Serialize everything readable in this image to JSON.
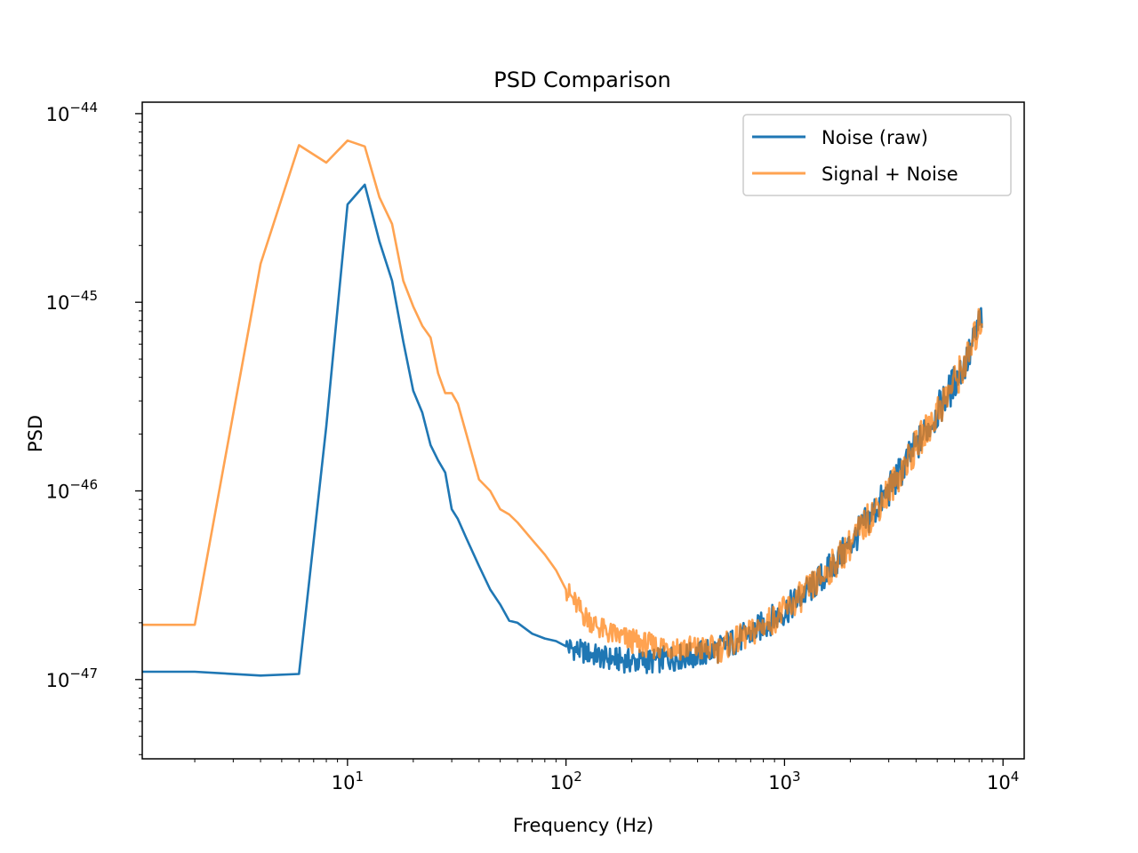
{
  "chart_data": {
    "type": "line",
    "title": "PSD Comparison",
    "xlabel": "Frequency (Hz)",
    "ylabel": "PSD",
    "xscale": "log",
    "yscale": "log",
    "xlim": [
      1.15,
      12500
    ],
    "ylim": [
      3.8e-48,
      1.15e-44
    ],
    "grid": false,
    "legend": {
      "placement": "top-right"
    },
    "x_ticks": [
      {
        "value": 10,
        "base": "10",
        "exp": "1"
      },
      {
        "value": 100,
        "base": "10",
        "exp": "2"
      },
      {
        "value": 1000,
        "base": "10",
        "exp": "3"
      },
      {
        "value": 10000,
        "base": "10",
        "exp": "4"
      }
    ],
    "y_ticks": [
      {
        "value": 1e-47,
        "base": "10",
        "exp": "−47"
      },
      {
        "value": 1e-46,
        "base": "10",
        "exp": "−46"
      },
      {
        "value": 1e-45,
        "base": "10",
        "exp": "−45"
      },
      {
        "value": 1e-44,
        "base": "10",
        "exp": "−44"
      }
    ],
    "series": [
      {
        "name": "Noise (raw)",
        "color": "#1f77b4",
        "x": [
          1,
          2,
          4,
          6,
          8,
          10,
          12,
          14,
          16,
          18,
          20,
          22,
          24,
          26,
          28,
          30,
          32,
          35,
          40,
          45,
          50,
          55,
          60,
          70,
          80,
          90,
          100,
          120,
          150,
          200,
          250,
          300,
          400,
          500,
          700,
          1000,
          1500,
          2000,
          3000,
          5000,
          7000,
          8000
        ],
        "y": [
          1.1e-47,
          1.1e-47,
          1.05e-47,
          1.07e-47,
          2.2e-46,
          3.3e-45,
          4.2e-45,
          2.1e-45,
          1.3e-45,
          6.2e-46,
          3.4e-46,
          2.6e-46,
          1.75e-46,
          1.45e-46,
          1.25e-46,
          8e-47,
          7.1e-47,
          5.6e-47,
          4e-47,
          3e-47,
          2.5e-47,
          2.05e-47,
          2e-47,
          1.75e-47,
          1.65e-47,
          1.6e-47,
          1.5e-47,
          1.4e-47,
          1.3e-47,
          1.25e-47,
          1.25e-47,
          1.3e-47,
          1.35e-47,
          1.45e-47,
          1.75e-47,
          2.3e-47,
          3.5e-47,
          5.2e-47,
          1e-46,
          2.6e-46,
          5.2e-46,
          8.5e-46
        ]
      },
      {
        "name": "Signal + Noise",
        "color": "#ff7f0e",
        "x": [
          1,
          2,
          4,
          6,
          8,
          10,
          12,
          14,
          16,
          18,
          20,
          22,
          24,
          26,
          28,
          30,
          32,
          35,
          40,
          45,
          50,
          55,
          60,
          70,
          80,
          90,
          100,
          120,
          150,
          200,
          250,
          300,
          400,
          500,
          700,
          1000,
          1500,
          2000,
          3000,
          5000,
          7000,
          8000
        ],
        "y": [
          1.95e-47,
          1.95e-47,
          1.6e-45,
          6.8e-45,
          5.5e-45,
          7.2e-45,
          6.7e-45,
          3.6e-45,
          2.6e-45,
          1.3e-45,
          9.5e-46,
          7.5e-46,
          6.5e-46,
          4.2e-46,
          3.3e-46,
          3.3e-46,
          2.9e-46,
          2e-46,
          1.15e-46,
          1e-46,
          8e-47,
          7.5e-47,
          6.8e-47,
          5.5e-47,
          4.6e-47,
          3.8e-47,
          3e-47,
          2.2e-47,
          1.8e-47,
          1.6e-47,
          1.5e-47,
          1.5e-47,
          1.45e-47,
          1.45e-47,
          1.75e-47,
          2.3e-47,
          3.5e-47,
          5.2e-47,
          1e-46,
          2.6e-46,
          5.2e-46,
          8.5e-46
        ]
      }
    ]
  }
}
